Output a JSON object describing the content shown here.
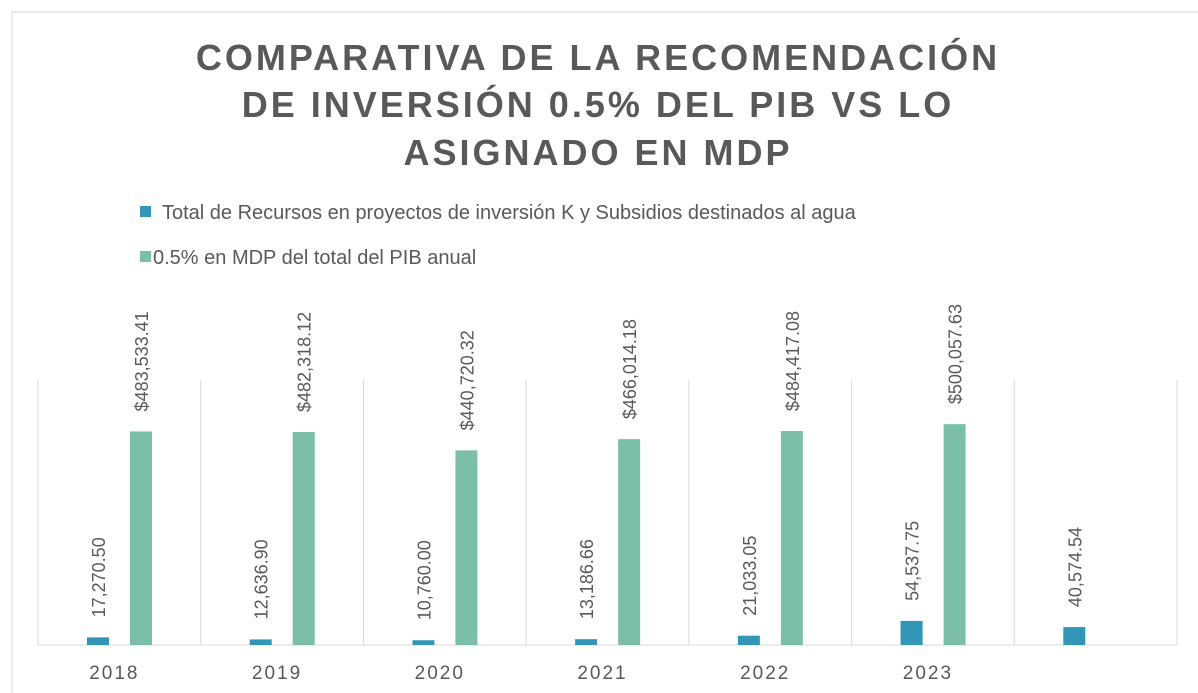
{
  "chart_data": {
    "type": "bar",
    "title": [
      "COMPARATIVA DE LA RECOMENDACIÓN",
      "DE INVERSIÓN 0.5% DEL PIB VS LO",
      "ASIGNADO EN MDP"
    ],
    "categories": [
      "2018",
      "2019",
      "2020",
      "2021",
      "2022",
      "2023",
      null
    ],
    "series": [
      {
        "name": "Total de Recursos en proyectos de inversión K y Subsidios destinados al agua",
        "color": "#3196b8",
        "values": [
          17270.5,
          12636.9,
          10760.0,
          13186.66,
          21033.05,
          54537.75,
          40574.54
        ],
        "value_labels": [
          "17,270.50",
          "12,636.90",
          "10,760.00",
          "13,186.66",
          "21,033.05",
          "54,537.75",
          "40,574.54"
        ]
      },
      {
        "name": "0.5% en MDP del total del PIB anual",
        "color": "#7bbfa6",
        "values": [
          483533.41,
          482318.12,
          440720.32,
          466014.18,
          484417.08,
          500057.63,
          null
        ],
        "value_labels": [
          "$483,533.41",
          "$482,318.12",
          "$440,720.32",
          "$466,014.18",
          "$484,417.08",
          "$500,057.63",
          null
        ]
      }
    ],
    "ylim": [
      0,
      600000
    ],
    "legend": "top"
  }
}
